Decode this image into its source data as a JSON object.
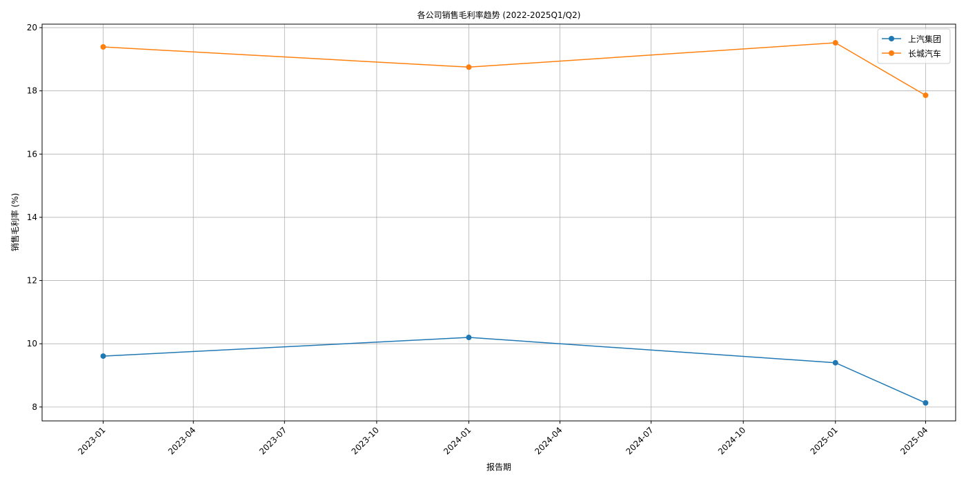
{
  "chart_data": {
    "type": "line",
    "title": "各公司销售毛利率趋势 (2022-2025Q1/Q2)",
    "x_label": "报告期",
    "y_label": "销售毛利率 (%)",
    "x": [
      "2023-01",
      "2024-01",
      "2025-01",
      "2025-04"
    ],
    "series": [
      {
        "name": "上汽集团",
        "color": "#1f77b4",
        "values": [
          9.61,
          10.2,
          9.4,
          8.13
        ]
      },
      {
        "name": "长城汽车",
        "color": "#ff7f0e",
        "values": [
          19.39,
          18.75,
          19.52,
          17.86
        ]
      }
    ],
    "xlim": [
      "2022-11",
      "2025-05"
    ],
    "xticks": [
      "2023-01",
      "2023-04",
      "2023-07",
      "2023-10",
      "2024-01",
      "2024-04",
      "2024-07",
      "2024-10",
      "2025-01",
      "2025-04"
    ],
    "ylim": [
      7.56,
      20.11
    ],
    "yticks": [
      8,
      10,
      12,
      14,
      16,
      18,
      20
    ],
    "grid": true,
    "legend": "upper-right"
  }
}
